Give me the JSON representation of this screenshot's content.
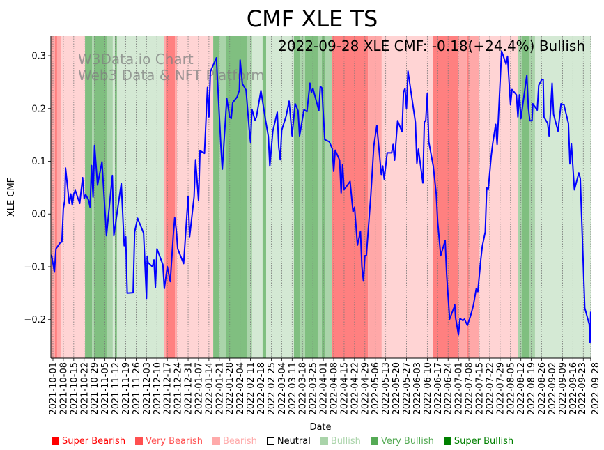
{
  "chart_data": {
    "type": "line",
    "title": "CMF XLE TS",
    "annotation": "2022-09-28 XLE CMF: -0.18(+24.4%) Bullish",
    "watermark": [
      "W3Data.io Chart",
      "Web3 Data & NFT Platform"
    ],
    "xlabel": "Date",
    "ylabel": "XLE CMF",
    "x_origin": "2021-10-01",
    "x_unit": "days since 2021-10-01",
    "xlim": [
      -1.4,
      362.5
    ],
    "ylim": [
      -0.273,
      0.337
    ],
    "yticks": [
      -0.2,
      -0.1,
      0.0,
      0.1,
      0.2,
      0.3
    ],
    "ytick_labels": [
      "−0.2",
      "−0.1",
      "0.0",
      "0.1",
      "0.2",
      "0.3"
    ],
    "xtick_labels": [
      "2021-10-01",
      "2021-10-08",
      "2021-10-15",
      "2021-10-22",
      "2021-10-29",
      "2021-11-05",
      "2021-11-12",
      "2021-11-19",
      "2021-11-26",
      "2021-12-03",
      "2021-12-10",
      "2021-12-17",
      "2021-12-24",
      "2021-12-31",
      "2022-01-07",
      "2022-01-14",
      "2022-01-21",
      "2022-01-28",
      "2022-02-04",
      "2022-02-11",
      "2022-02-18",
      "2022-02-25",
      "2022-03-04",
      "2022-03-11",
      "2022-03-18",
      "2022-03-25",
      "2022-04-01",
      "2022-04-08",
      "2022-04-15",
      "2022-04-22",
      "2022-04-29",
      "2022-05-06",
      "2022-05-13",
      "2022-05-20",
      "2022-05-27",
      "2022-06-03",
      "2022-06-10",
      "2022-06-17",
      "2022-06-24",
      "2022-07-01",
      "2022-07-08",
      "2022-07-15",
      "2022-07-22",
      "2022-07-29",
      "2022-08-05",
      "2022-08-12",
      "2022-08-19",
      "2022-08-26",
      "2022-09-02",
      "2022-09-09",
      "2022-09-16",
      "2022-09-23",
      "2022-09-28"
    ],
    "xtick_days": [
      0,
      7,
      14,
      21,
      28,
      35,
      42,
      49,
      56,
      63,
      70,
      77,
      84,
      91,
      98,
      105,
      112,
      119,
      126,
      133,
      140,
      147,
      154,
      161,
      168,
      175,
      182,
      189,
      196,
      203,
      210,
      217,
      224,
      231,
      238,
      245,
      252,
      259,
      266,
      273,
      280,
      287,
      294,
      301,
      308,
      315,
      322,
      329,
      336,
      343,
      350,
      357,
      362
    ],
    "grid": "vertical dotted at x ticks",
    "series": [
      {
        "name": "XLE CMF",
        "color": "#0000ff",
        "points": [
          [
            -1,
            -0.077
          ],
          [
            1,
            -0.11
          ],
          [
            2,
            -0.066
          ],
          [
            5,
            -0.054
          ],
          [
            6,
            -0.053
          ],
          [
            7,
            0.01
          ],
          [
            8,
            0.026
          ],
          [
            8.5,
            0.087
          ],
          [
            11,
            0.02
          ],
          [
            12,
            0.038
          ],
          [
            13,
            0.017
          ],
          [
            14,
            0.038
          ],
          [
            15,
            0.045
          ],
          [
            18,
            0.02
          ],
          [
            20,
            0.069
          ],
          [
            21,
            0.029
          ],
          [
            22,
            0.037
          ],
          [
            24,
            0.026
          ],
          [
            25,
            0.013
          ],
          [
            26,
            0.092
          ],
          [
            27,
            0.032
          ],
          [
            28,
            0.13
          ],
          [
            30,
            0.055
          ],
          [
            33,
            0.099
          ],
          [
            36,
            -0.041
          ],
          [
            40,
            0.073
          ],
          [
            41,
            -0.041
          ],
          [
            46,
            0.058
          ],
          [
            48,
            -0.06
          ],
          [
            49,
            -0.043
          ],
          [
            50,
            -0.15
          ],
          [
            54,
            -0.149
          ],
          [
            55,
            -0.034
          ],
          [
            57,
            -0.008
          ],
          [
            61,
            -0.036
          ],
          [
            63,
            -0.16
          ],
          [
            63.5,
            -0.08
          ],
          [
            64,
            -0.092
          ],
          [
            67,
            -0.1
          ],
          [
            68,
            -0.087
          ],
          [
            69,
            -0.139
          ],
          [
            70,
            -0.066
          ],
          [
            74,
            -0.096
          ],
          [
            75,
            -0.141
          ],
          [
            77,
            -0.1
          ],
          [
            79,
            -0.128
          ],
          [
            81,
            -0.041
          ],
          [
            82,
            -0.007
          ],
          [
            83,
            -0.03
          ],
          [
            84,
            -0.066
          ],
          [
            88,
            -0.094
          ],
          [
            91,
            0.033
          ],
          [
            92,
            -0.043
          ],
          [
            95,
            0.033
          ],
          [
            96,
            0.103
          ],
          [
            98,
            0.025
          ],
          [
            99,
            0.12
          ],
          [
            102,
            0.115
          ],
          [
            104,
            0.24
          ],
          [
            105,
            0.184
          ],
          [
            106,
            0.27
          ],
          [
            110,
            0.296
          ],
          [
            113,
            0.13
          ],
          [
            114,
            0.085
          ],
          [
            117,
            0.219
          ],
          [
            119,
            0.184
          ],
          [
            120,
            0.181
          ],
          [
            121,
            0.211
          ],
          [
            124,
            0.222
          ],
          [
            125.5,
            0.235
          ],
          [
            126,
            0.292
          ],
          [
            127.5,
            0.247
          ],
          [
            130,
            0.235
          ],
          [
            132,
            0.164
          ],
          [
            133,
            0.136
          ],
          [
            134,
            0.198
          ],
          [
            136,
            0.178
          ],
          [
            137,
            0.184
          ],
          [
            140,
            0.234
          ],
          [
            143,
            0.18
          ],
          [
            145,
            0.147
          ],
          [
            146,
            0.091
          ],
          [
            148,
            0.157
          ],
          [
            151,
            0.193
          ],
          [
            152,
            0.127
          ],
          [
            153,
            0.103
          ],
          [
            154,
            0.159
          ],
          [
            157,
            0.186
          ],
          [
            159,
            0.214
          ],
          [
            161,
            0.148
          ],
          [
            163,
            0.209
          ],
          [
            165,
            0.196
          ],
          [
            166,
            0.148
          ],
          [
            169,
            0.198
          ],
          [
            171,
            0.194
          ],
          [
            173,
            0.248
          ],
          [
            174,
            0.23
          ],
          [
            175,
            0.238
          ],
          [
            179,
            0.196
          ],
          [
            180,
            0.242
          ],
          [
            181,
            0.239
          ],
          [
            183,
            0.141
          ],
          [
            186,
            0.137
          ],
          [
            188,
            0.124
          ],
          [
            189,
            0.081
          ],
          [
            190,
            0.121
          ],
          [
            193,
            0.102
          ],
          [
            194,
            0.04
          ],
          [
            195,
            0.094
          ],
          [
            196,
            0.046
          ],
          [
            200,
            0.062
          ],
          [
            202,
            0.004
          ],
          [
            203,
            0.013
          ],
          [
            205,
            -0.059
          ],
          [
            207,
            -0.033
          ],
          [
            208,
            -0.1
          ],
          [
            209,
            -0.127
          ],
          [
            210,
            -0.079
          ],
          [
            211,
            -0.078
          ],
          [
            214,
            0.036
          ],
          [
            216,
            0.129
          ],
          [
            218,
            0.168
          ],
          [
            221,
            0.075
          ],
          [
            222,
            0.091
          ],
          [
            223,
            0.066
          ],
          [
            225,
            0.116
          ],
          [
            228,
            0.116
          ],
          [
            229,
            0.132
          ],
          [
            230,
            0.102
          ],
          [
            232,
            0.177
          ],
          [
            235,
            0.156
          ],
          [
            236,
            0.231
          ],
          [
            237,
            0.238
          ],
          [
            238,
            0.2
          ],
          [
            239,
            0.271
          ],
          [
            244,
            0.174
          ],
          [
            245,
            0.096
          ],
          [
            246,
            0.123
          ],
          [
            249,
            0.059
          ],
          [
            250,
            0.174
          ],
          [
            251,
            0.178
          ],
          [
            252,
            0.229
          ],
          [
            253,
            0.137
          ],
          [
            256,
            0.091
          ],
          [
            258,
            0.038
          ],
          [
            259,
            -0.015
          ],
          [
            261,
            -0.079
          ],
          [
            264,
            -0.05
          ],
          [
            265,
            -0.114
          ],
          [
            267,
            -0.199
          ],
          [
            270,
            -0.177
          ],
          [
            270.5,
            -0.172
          ],
          [
            271,
            -0.196
          ],
          [
            273,
            -0.229
          ],
          [
            274,
            -0.198
          ],
          [
            276,
            -0.202
          ],
          [
            277,
            -0.199
          ],
          [
            279,
            -0.211
          ],
          [
            281,
            -0.194
          ],
          [
            283,
            -0.173
          ],
          [
            285,
            -0.141
          ],
          [
            286,
            -0.147
          ],
          [
            288,
            -0.087
          ],
          [
            289,
            -0.061
          ],
          [
            291,
            -0.034
          ],
          [
            292,
            0.05
          ],
          [
            293,
            0.046
          ],
          [
            295,
            0.11
          ],
          [
            296,
            0.133
          ],
          [
            298,
            0.17
          ],
          [
            299,
            0.132
          ],
          [
            302,
            0.309
          ],
          [
            305,
            0.284
          ],
          [
            306,
            0.299
          ],
          [
            308,
            0.207
          ],
          [
            309,
            0.236
          ],
          [
            312,
            0.226
          ],
          [
            313,
            0.184
          ],
          [
            314,
            0.226
          ],
          [
            315,
            0.181
          ],
          [
            319,
            0.263
          ],
          [
            320,
            0.202
          ],
          [
            321,
            0.177
          ],
          [
            322.5,
            0.177
          ],
          [
            323,
            0.209
          ],
          [
            326,
            0.197
          ],
          [
            327,
            0.244
          ],
          [
            329,
            0.255
          ],
          [
            330,
            0.255
          ],
          [
            330.5,
            0.184
          ],
          [
            333,
            0.172
          ],
          [
            334,
            0.148
          ],
          [
            336,
            0.248
          ],
          [
            337,
            0.189
          ],
          [
            340,
            0.157
          ],
          [
            342,
            0.209
          ],
          [
            344,
            0.207
          ],
          [
            347,
            0.172
          ],
          [
            348,
            0.095
          ],
          [
            349,
            0.133
          ],
          [
            351,
            0.046
          ],
          [
            354,
            0.078
          ],
          [
            355,
            0.067
          ],
          [
            358,
            -0.178
          ],
          [
            361,
            -0.209
          ],
          [
            361.5,
            -0.244
          ],
          [
            362,
            -0.185
          ]
        ]
      }
    ],
    "regimes": [
      {
        "from": -1.4,
        "to": 1.4,
        "level": "Very Bearish"
      },
      {
        "from": 1.4,
        "to": 2.8,
        "level": "Super Bearish"
      },
      {
        "from": 2.8,
        "to": 5.6,
        "level": "Very Bearish"
      },
      {
        "from": 5.6,
        "to": 21.6,
        "level": "Bearish"
      },
      {
        "from": 21.6,
        "to": 26.3,
        "level": "Super Bullish"
      },
      {
        "from": 26.3,
        "to": 27.7,
        "level": "Very Bullish"
      },
      {
        "from": 27.7,
        "to": 36.1,
        "level": "Super Bullish"
      },
      {
        "from": 36.1,
        "to": 40.3,
        "level": "Very Bullish"
      },
      {
        "from": 40.3,
        "to": 41.7,
        "level": "Bullish"
      },
      {
        "from": 41.7,
        "to": 43.1,
        "level": "Super Bullish"
      },
      {
        "from": 43.1,
        "to": 74.6,
        "level": "Bullish"
      },
      {
        "from": 74.6,
        "to": 76,
        "level": "Very Bearish"
      },
      {
        "from": 76,
        "to": 82.1,
        "level": "Super Bearish"
      },
      {
        "from": 82.1,
        "to": 83.5,
        "level": "Very Bearish"
      },
      {
        "from": 83.5,
        "to": 107.9,
        "level": "Bearish"
      },
      {
        "from": 107.9,
        "to": 112.1,
        "level": "Super Bullish"
      },
      {
        "from": 112.1,
        "to": 116.3,
        "level": "Very Bullish"
      },
      {
        "from": 116.3,
        "to": 130.8,
        "level": "Super Bullish"
      },
      {
        "from": 130.8,
        "to": 134.1,
        "level": "Very Bullish"
      },
      {
        "from": 134.1,
        "to": 141.1,
        "level": "Bullish"
      },
      {
        "from": 141.1,
        "to": 143.5,
        "level": "Super Bullish"
      },
      {
        "from": 143.5,
        "to": 162.2,
        "level": "Bullish"
      },
      {
        "from": 162.2,
        "to": 166.5,
        "level": "Super Bullish"
      },
      {
        "from": 166.5,
        "to": 169.7,
        "level": "Very Bullish"
      },
      {
        "from": 169.7,
        "to": 178.2,
        "level": "Super Bullish"
      },
      {
        "from": 178.2,
        "to": 181,
        "level": "Very Bullish"
      },
      {
        "from": 181,
        "to": 182.9,
        "level": "Super Bullish"
      },
      {
        "from": 182.9,
        "to": 188,
        "level": "Very Bullish"
      },
      {
        "from": 188,
        "to": 212,
        "level": "Super Bearish"
      },
      {
        "from": 212,
        "to": 221.3,
        "level": "Very Bearish"
      },
      {
        "from": 221.3,
        "to": 255.6,
        "level": "Bearish"
      },
      {
        "from": 255.6,
        "to": 272.9,
        "level": "Super Bearish"
      },
      {
        "from": 272.9,
        "to": 278.5,
        "level": "Very Bearish"
      },
      {
        "from": 278.5,
        "to": 279.9,
        "level": "Super Bearish"
      },
      {
        "from": 279.9,
        "to": 287,
        "level": "Very Bearish"
      },
      {
        "from": 287,
        "to": 313.2,
        "level": "Bearish"
      },
      {
        "from": 313.2,
        "to": 316,
        "level": "Very Bullish"
      },
      {
        "from": 316,
        "to": 320.3,
        "level": "Super Bullish"
      },
      {
        "from": 320.3,
        "to": 324.5,
        "level": "Very Bullish"
      },
      {
        "from": 324.5,
        "to": 362.5,
        "level": "Bullish"
      }
    ],
    "legend": [
      {
        "label": "Super Bearish",
        "color": "#ff0000",
        "band": "#ff8080"
      },
      {
        "label": "Very Bearish",
        "color": "#ff5050",
        "band": "#ffa8a8"
      },
      {
        "label": "Bearish",
        "color": "#ffaaaa",
        "band": "#ffd4d4"
      },
      {
        "label": "Neutral",
        "color": "#000000",
        "band": "#ffffff"
      },
      {
        "label": "Bullish",
        "color": "#aad4aa",
        "band": "#d4e9d4"
      },
      {
        "label": "Very Bullish",
        "color": "#55aa55",
        "band": "#aad4aa"
      },
      {
        "label": "Super Bullish",
        "color": "#008000",
        "band": "#80bf80"
      }
    ],
    "legend_placement": "bottom"
  }
}
